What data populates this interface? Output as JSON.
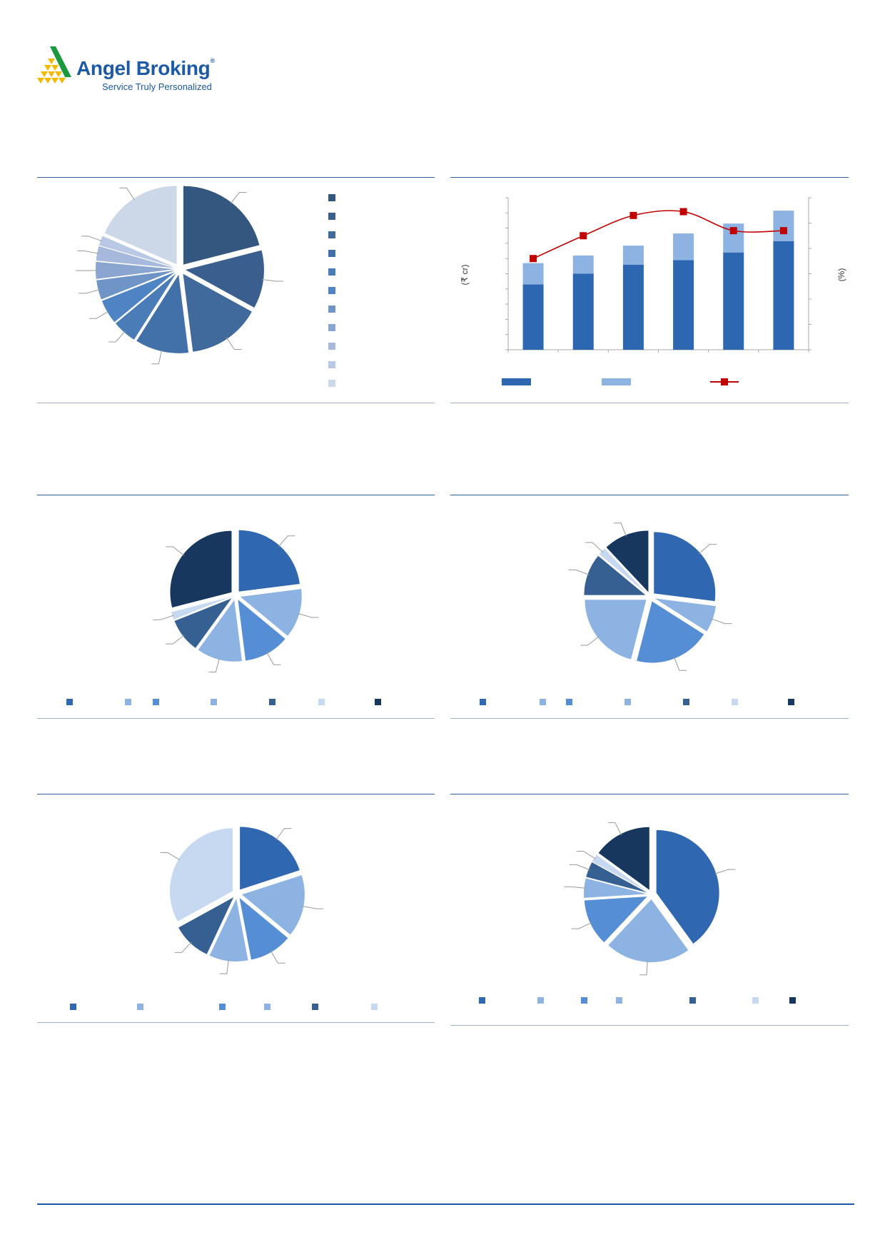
{
  "logo": {
    "brand": "Angel Broking",
    "registered": "®",
    "tagline": "Service Truly Personalized",
    "colors": {
      "green": "#1a9a3c",
      "yellow": "#f5b800",
      "blue": "#1c5aa6"
    }
  },
  "chart_data": [
    {
      "type": "pie",
      "exploded": true,
      "values": [
        21,
        12,
        15,
        11,
        5,
        5,
        4,
        3.5,
        3,
        2,
        18.5
      ],
      "colors": [
        "#34577f",
        "#3a5e8e",
        "#406a9c",
        "#4270a9",
        "#4a7cb8",
        "#4f84c4",
        "#6f94c6",
        "#8aa5d0",
        "#a6b9dc",
        "#b9c8e4",
        "#ccd7e8"
      ],
      "legend": "right-vertical"
    },
    {
      "type": "bar",
      "stacked": true,
      "ylabel": "(₹ cr)",
      "y2label": "(%)",
      "ylim": [
        0,
        10
      ],
      "y2lim": [
        0,
        6
      ],
      "series": [
        {
          "kind": "bar",
          "color": "#2e67b1",
          "values": [
            4.3,
            5.0,
            5.6,
            5.9,
            6.4,
            7.15
          ]
        },
        {
          "kind": "bar",
          "color": "#8db3e2",
          "values": [
            1.4,
            1.2,
            1.25,
            1.75,
            1.9,
            2.0
          ]
        },
        {
          "kind": "line",
          "axis": "right",
          "color": "#c00000",
          "values": [
            3.6,
            4.5,
            5.3,
            5.45,
            4.7,
            4.7
          ]
        }
      ],
      "grid": false,
      "legend": "bottom"
    },
    {
      "type": "pie",
      "exploded": true,
      "values": [
        23,
        13,
        12,
        12,
        9,
        2,
        29
      ],
      "colors": [
        "#2f67b1",
        "#8db3e2",
        "#558ed5",
        "#8db3e2",
        "#376092",
        "#c6d9f1",
        "#17375e"
      ],
      "legend": "bottom"
    },
    {
      "type": "pie",
      "exploded": true,
      "values": [
        27,
        7,
        20,
        21,
        11,
        2,
        12
      ],
      "colors": [
        "#2f67b1",
        "#8db3e2",
        "#558ed5",
        "#8db3e2",
        "#376092",
        "#c6d9f1",
        "#17375e"
      ],
      "legend": "bottom"
    },
    {
      "type": "pie",
      "exploded": true,
      "values": [
        20,
        16,
        11,
        10,
        10,
        33
      ],
      "colors": [
        "#2f67b1",
        "#8db3e2",
        "#558ed5",
        "#8db3e2",
        "#376092",
        "#c6d9f1"
      ],
      "legend": "bottom"
    },
    {
      "type": "pie",
      "exploded": true,
      "values": [
        40,
        22,
        12,
        5,
        4,
        2,
        15
      ],
      "colors": [
        "#2f67b1",
        "#8db3e2",
        "#558ed5",
        "#8db3e2",
        "#376092",
        "#c6d9f1",
        "#17375e"
      ],
      "legend": "bottom"
    }
  ]
}
